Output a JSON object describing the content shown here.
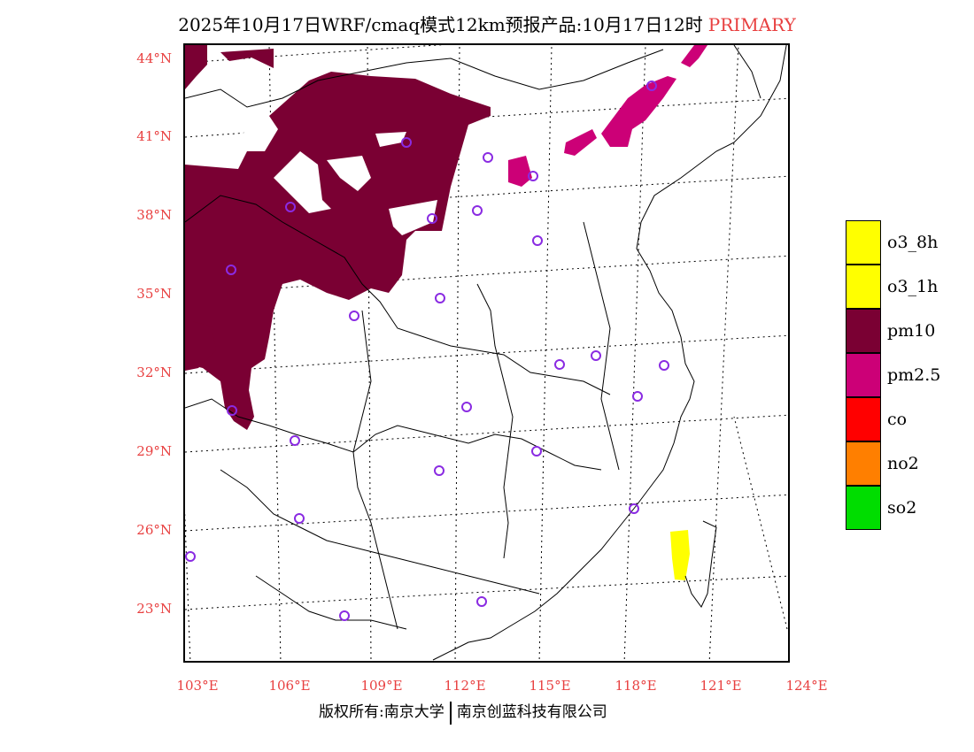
{
  "title": {
    "main": "2025年10月17日WRF/cmaq模式12km预报产品:10月17日12时",
    "pollutant": "PRIMARY"
  },
  "map": {
    "lat_labels": [
      "44°N",
      "41°N",
      "38°N",
      "35°N",
      "32°N",
      "29°N",
      "26°N",
      "23°N"
    ],
    "lon_labels": [
      "103°E",
      "106°E",
      "109°E",
      "112°E",
      "115°E",
      "118°E",
      "121°E",
      "124°E"
    ],
    "colors": {
      "pm10": "#7a0033",
      "pm25": "#cc0077",
      "o3": "#ffff00",
      "station_marker": "#8a2be2",
      "label": "#e84040"
    }
  },
  "legend": {
    "items": [
      {
        "label": "o3_8h",
        "color": "#ffff00"
      },
      {
        "label": "o3_1h",
        "color": "#ffff00"
      },
      {
        "label": "pm10",
        "color": "#7a0033"
      },
      {
        "label": "pm2.5",
        "color": "#cc0077"
      },
      {
        "label": "co",
        "color": "#ff0000"
      },
      {
        "label": "no2",
        "color": "#ff7f00"
      },
      {
        "label": "so2",
        "color": "#00dd00"
      }
    ]
  },
  "footer": {
    "copyright": "版权所有:南京大学",
    "company": "南京创蓝科技有限公司"
  }
}
